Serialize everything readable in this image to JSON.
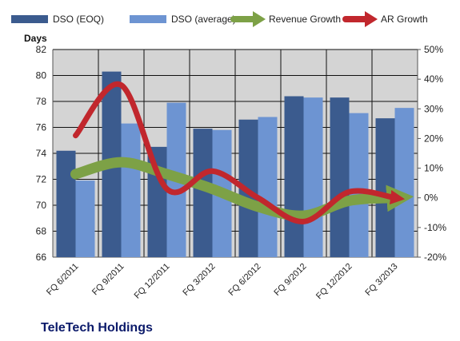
{
  "chart_data": {
    "type": "bar",
    "title": "TeleTech Holdings",
    "ylabel": "Days",
    "categories": [
      "FQ 6/2011",
      "FQ 9/2011",
      "FQ 12/2011",
      "FQ 3/2012",
      "FQ 6/2012",
      "FQ 9/2012",
      "FQ 12/2012",
      "FQ 3/2013"
    ],
    "ylim": [
      66,
      82
    ],
    "yticks": [
      "66",
      "68",
      "70",
      "72",
      "74",
      "76",
      "78",
      "80",
      "82"
    ],
    "y2lim": [
      -20,
      50
    ],
    "y2ticks": [
      "-20%",
      "-10%",
      "0%",
      "10%",
      "20%",
      "30%",
      "40%",
      "50%"
    ],
    "series": [
      {
        "name": "DSO (EOQ)",
        "type": "bar",
        "axis": "left",
        "color": "#3b5b8e",
        "values": [
          74.2,
          80.3,
          74.5,
          75.9,
          76.6,
          78.4,
          78.3,
          76.7
        ]
      },
      {
        "name": "DSO (average)",
        "type": "bar",
        "axis": "left",
        "color": "#6d94d2",
        "values": [
          71.9,
          76.3,
          77.9,
          75.8,
          76.8,
          78.3,
          77.1,
          77.5
        ]
      },
      {
        "name": "Revenue Growth",
        "type": "line",
        "axis": "right",
        "color": "#7da146",
        "values": [
          8,
          12,
          8,
          3,
          -3,
          -6,
          -1,
          0
        ]
      },
      {
        "name": "AR Growth",
        "type": "line",
        "axis": "right",
        "color": "#c1272d",
        "values": [
          21,
          38,
          3,
          9,
          0,
          -8,
          2,
          0
        ]
      }
    ],
    "grid": true,
    "legend": "top"
  },
  "colors": {
    "plot_background": "#d4d4d4",
    "gridline": "#111111",
    "title": "#0b1a6a"
  }
}
